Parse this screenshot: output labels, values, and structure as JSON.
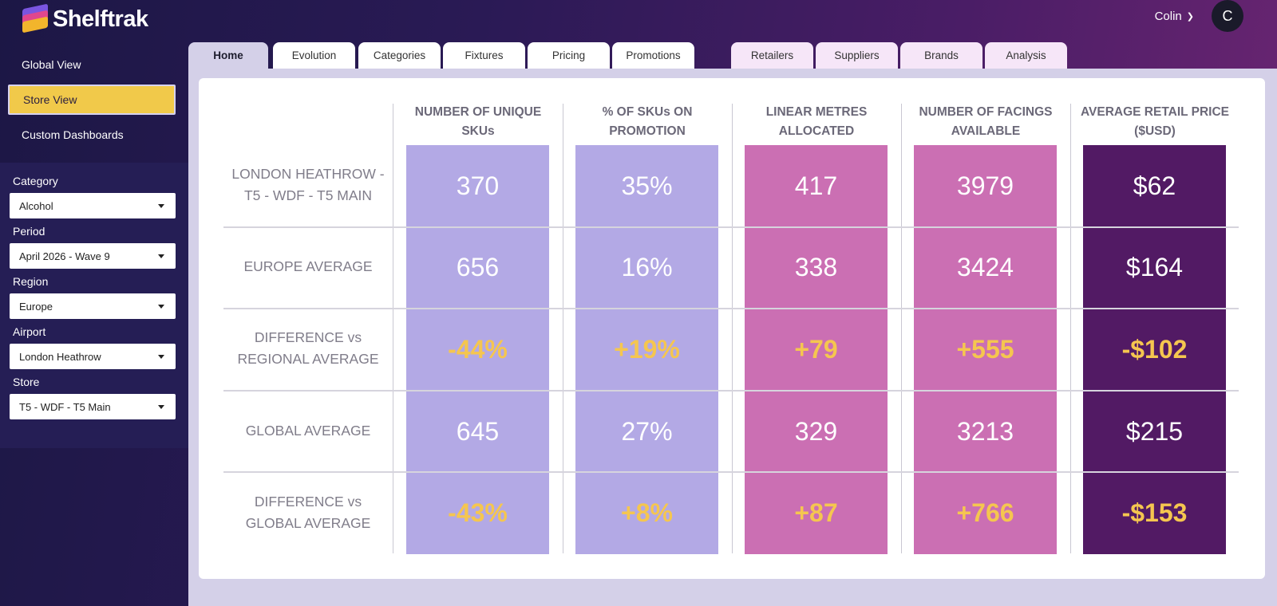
{
  "app": {
    "name": "Shelftrak"
  },
  "user": {
    "name": "Colin",
    "initial": "C"
  },
  "nav": [
    {
      "label": "Global View"
    },
    {
      "label": "Store View",
      "active": true
    },
    {
      "label": "Custom Dashboards"
    }
  ],
  "filters": [
    {
      "label": "Category",
      "value": "Alcohol"
    },
    {
      "label": "Period",
      "value": "April 2026 - Wave 9"
    },
    {
      "label": "Region",
      "value": "Europe"
    },
    {
      "label": "Airport",
      "value": "London Heathrow"
    },
    {
      "label": "Store",
      "value": "T5 - WDF - T5 Main"
    }
  ],
  "tabs": [
    {
      "label": "Home",
      "active": true
    },
    {
      "label": "Evolution"
    },
    {
      "label": "Categories"
    },
    {
      "label": "Fixtures"
    },
    {
      "label": "Pricing"
    },
    {
      "label": "Promotions"
    },
    {
      "label": "Retailers",
      "group": "alt"
    },
    {
      "label": "Suppliers",
      "group": "alt"
    },
    {
      "label": "Brands",
      "group": "alt"
    },
    {
      "label": "Analysis",
      "group": "alt"
    }
  ],
  "columns": [
    {
      "label": "NUMBER OF UNIQUE SKUs"
    },
    {
      "label": "% OF SKUs ON PROMOTION"
    },
    {
      "label": "LINEAR METRES ALLOCATED"
    },
    {
      "label": "NUMBER OF FACINGS AVAILABLE"
    },
    {
      "label": "AVERAGE RETAIL PRICE ($USD)"
    }
  ],
  "rows": [
    {
      "label": "LONDON HEATHROW - T5 - WDF - T5 MAIN",
      "values": [
        "370",
        "35%",
        "417",
        "3979",
        "$62"
      ],
      "diff": false
    },
    {
      "label": "EUROPE AVERAGE",
      "values": [
        "656",
        "16%",
        "338",
        "3424",
        "$164"
      ],
      "diff": false
    },
    {
      "label": "DIFFERENCE vs REGIONAL AVERAGE",
      "values": [
        "-44%",
        "+19%",
        "+79",
        "+555",
        "-$102"
      ],
      "diff": true
    },
    {
      "label": "GLOBAL AVERAGE",
      "values": [
        "645",
        "27%",
        "329",
        "3213",
        "$215"
      ],
      "diff": false
    },
    {
      "label": "DIFFERENCE vs GLOBAL AVERAGE",
      "values": [
        "-43%",
        "+8%",
        "+87",
        "+766",
        "-$153"
      ],
      "diff": true
    }
  ],
  "colors": {
    "sku": "#b3a9e5",
    "promo": "#b3a9e5",
    "metres": "#cb6fb3",
    "facings": "#cb6fb3",
    "price": "#521a64",
    "highlight": "#f5c64f"
  },
  "icons": {
    "dropdown": "caret-down-icon",
    "user_menu": "chevron-down-icon"
  }
}
